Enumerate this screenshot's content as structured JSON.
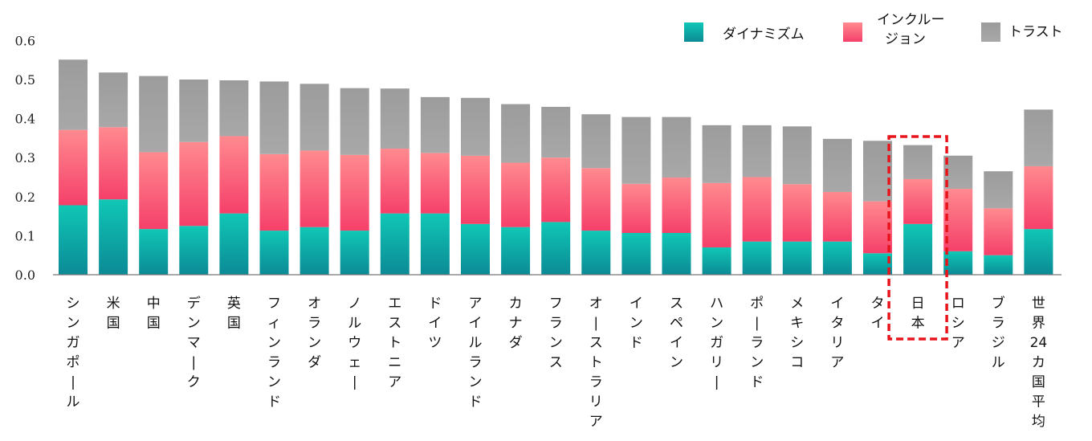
{
  "chart_data": {
    "type": "bar",
    "stacked": true,
    "categories": [
      "シンガポール",
      "米国",
      "中国",
      "デンマーク",
      "英国",
      "フィンランド",
      "オランダ",
      "ノルウェー",
      "エストニア",
      "ドイツ",
      "アイルランド",
      "カナダ",
      "フランス",
      "オーストラリア、",
      "インド",
      "スペイン",
      "ハンガリー",
      "ポーランド",
      "メキシコ",
      "イタリア",
      "タイ",
      "日本",
      "ロシア",
      "ブラジル",
      "世界24カ国平均"
    ],
    "series": [
      {
        "name": "ダイナミズム",
        "color": "#0fb3a8",
        "values": [
          0.178,
          0.193,
          0.117,
          0.125,
          0.157,
          0.113,
          0.122,
          0.113,
          0.157,
          0.157,
          0.13,
          0.122,
          0.135,
          0.113,
          0.107,
          0.107,
          0.07,
          0.085,
          0.085,
          0.085,
          0.055,
          0.13,
          0.06,
          0.05,
          0.117
        ]
      },
      {
        "name": "インクルージョン",
        "color": "#f86a7a",
        "values": [
          0.193,
          0.185,
          0.197,
          0.215,
          0.198,
          0.196,
          0.196,
          0.194,
          0.166,
          0.155,
          0.175,
          0.165,
          0.165,
          0.16,
          0.126,
          0.142,
          0.165,
          0.165,
          0.147,
          0.127,
          0.133,
          0.115,
          0.16,
          0.12,
          0.161
        ]
      },
      {
        "name": "トラスト",
        "color": "#a3a3a3",
        "values": [
          0.18,
          0.14,
          0.195,
          0.16,
          0.143,
          0.186,
          0.171,
          0.171,
          0.154,
          0.143,
          0.148,
          0.15,
          0.13,
          0.138,
          0.171,
          0.155,
          0.148,
          0.133,
          0.148,
          0.136,
          0.155,
          0.087,
          0.085,
          0.095,
          0.145
        ]
      }
    ],
    "legend_labels": [
      "ダイナミズム",
      "インクルージョン",
      "トラスト"
    ],
    "ylim": [
      0,
      0.6
    ],
    "yticks": [
      "0.0",
      "0.1",
      "0.2",
      "0.3",
      "0.4",
      "0.5",
      "0.6"
    ],
    "grid": false,
    "legend_position": "top-right",
    "highlight_category": "日本",
    "highlight_color": "#e8141c"
  }
}
